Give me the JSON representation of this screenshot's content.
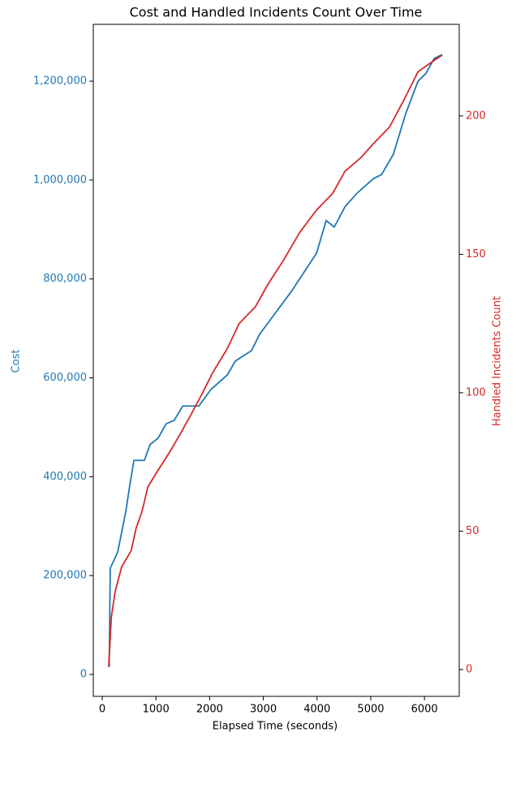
{
  "chart_data": {
    "type": "line",
    "title": "Cost and Handled Incidents Count Over Time",
    "x_label": "Elapsed Time (seconds)",
    "y_label": "Cost",
    "y2_label": "Handled Incidents Count",
    "xlim": [
      -166,
      6647
    ],
    "xticks": [
      0,
      1000,
      2000,
      3000,
      4000,
      5000,
      6000
    ],
    "ylim": [
      -44300,
      1315000
    ],
    "yticks": [
      {
        "value": 0,
        "label": "0"
      },
      {
        "value": 200000,
        "label": "200,000"
      },
      {
        "value": 400000,
        "label": "400,000"
      },
      {
        "value": 600000,
        "label": "600,000"
      },
      {
        "value": 800000,
        "label": "800,000"
      },
      {
        "value": 1000000,
        "label": "1,000,000"
      },
      {
        "value": 1200000,
        "label": "1,200,000"
      }
    ],
    "y2lim": [
      -9.7,
      233.1
    ],
    "y2ticks": [
      0,
      50,
      100,
      150,
      200
    ],
    "series": [
      {
        "name": "Cost",
        "color": "#1f77b4",
        "x": [
          130,
          140,
          150,
          290,
          440,
          510,
          590,
          785,
          890,
          1040,
          1190,
          1340,
          1500,
          1800,
          2020,
          2330,
          2480,
          2780,
          2930,
          3230,
          3530,
          3760,
          3990,
          4170,
          4320,
          4520,
          4740,
          5050,
          5200,
          5420,
          5650,
          5880,
          6030,
          6180,
          6330
        ],
        "values": [
          15000,
          116000,
          215000,
          248000,
          330000,
          380000,
          433000,
          433000,
          465000,
          478000,
          507000,
          514000,
          543000,
          543000,
          576000,
          606000,
          634000,
          655000,
          688000,
          732000,
          776000,
          814000,
          852000,
          918000,
          905000,
          946000,
          973000,
          1003000,
          1011000,
          1052000,
          1134000,
          1200000,
          1216000,
          1246000,
          1254000
        ]
      },
      {
        "name": "Handled Incidents Count",
        "color": "#d62728",
        "axis": "y2",
        "x": [
          120,
          170,
          240,
          360,
          540,
          630,
          740,
          850,
          1040,
          1270,
          1450,
          1650,
          1870,
          2050,
          2330,
          2550,
          2850,
          3080,
          3380,
          3680,
          3990,
          4290,
          4520,
          4820,
          5050,
          5350,
          5650,
          5880,
          6100,
          6330
        ],
        "values": [
          1,
          19,
          28,
          37,
          43,
          51,
          57,
          66,
          72,
          79,
          85,
          92,
          100,
          107,
          116,
          125,
          131,
          139,
          148,
          158,
          166,
          172,
          180,
          185,
          190,
          196,
          207,
          216,
          219,
          222
        ]
      }
    ]
  }
}
